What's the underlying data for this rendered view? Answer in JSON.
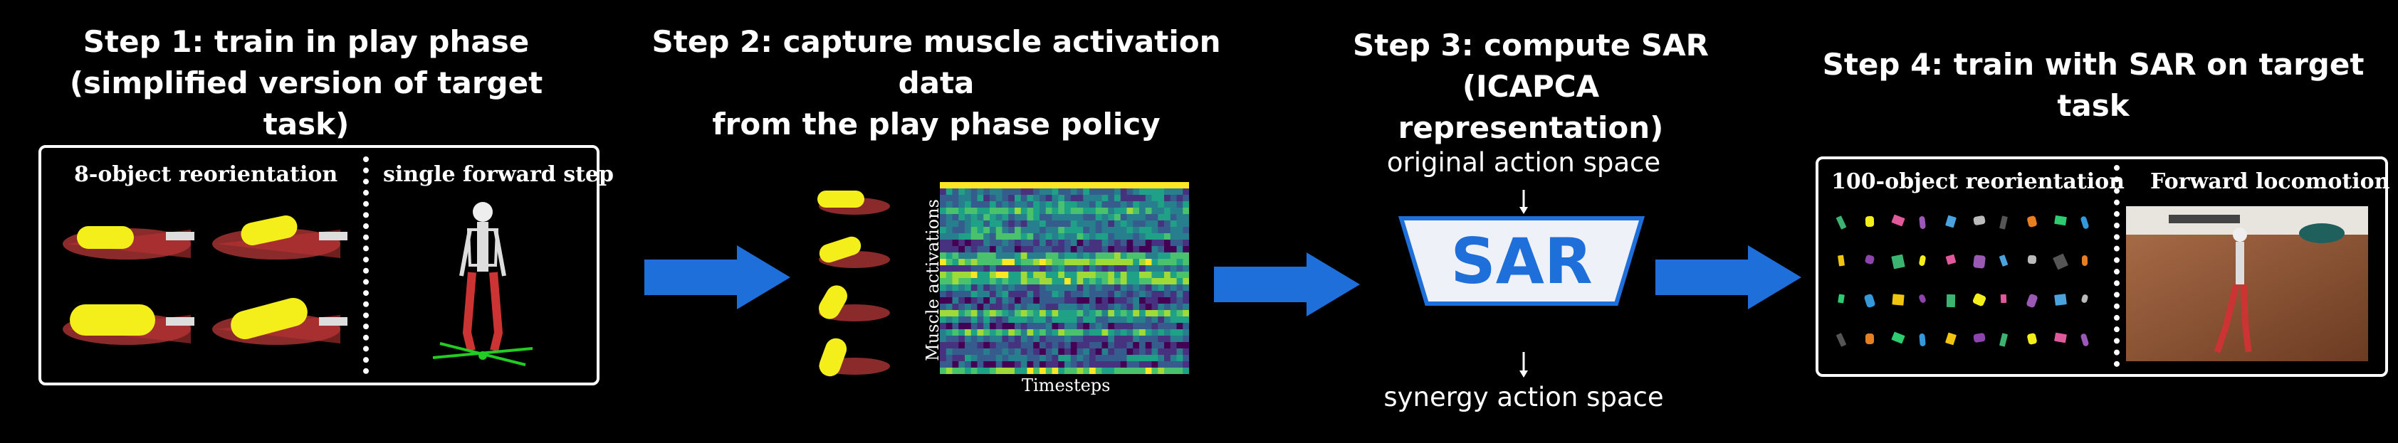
{
  "steps": [
    {
      "line1": "Step 1: train in play phase",
      "line2": "(simplified version of target task)"
    },
    {
      "line1": "Step 2: capture muscle activation data",
      "line2": "from the play phase policy"
    },
    {
      "line1": "Step 3: compute SAR",
      "line2": "(ICAPCA representation)"
    },
    {
      "line1": "Step 4: train with SAR on target task"
    }
  ],
  "panel1": {
    "left_label": "8-object reorientation",
    "right_label": "single forward step"
  },
  "heatmap": {
    "ylabel": "Muscle activations",
    "xlabel": "Timesteps"
  },
  "sar": {
    "label": "SAR",
    "top": "original action space",
    "bottom": "synergy action space"
  },
  "panel4": {
    "left_label": "100-object reorientation",
    "right_label": "Forward locomotion"
  },
  "colors": {
    "arrow": "#1e6fd9",
    "sar_box": "#eef1f7",
    "sar_border": "#1e6fd9",
    "object": "#f4ef1a"
  }
}
